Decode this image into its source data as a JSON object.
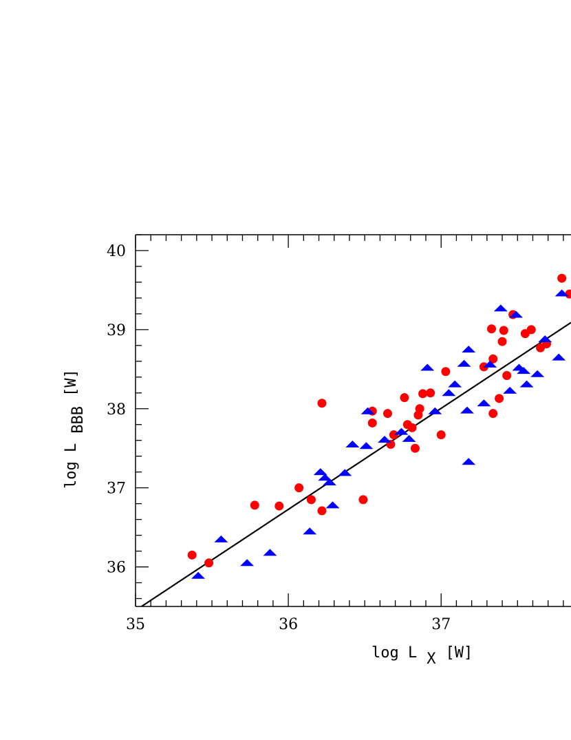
{
  "chart_data": {
    "type": "scatter",
    "title": "",
    "xlabel": {
      "main": "log L",
      "sub": "X",
      "unit": "[W]"
    },
    "ylabel": {
      "main": "log L",
      "sub": "BBB",
      "unit": "[W]"
    },
    "xlim": [
      35,
      37.85
    ],
    "ylim": [
      35.5,
      40.2
    ],
    "x_ticks": [
      35,
      36,
      37
    ],
    "y_ticks": [
      36,
      37,
      38,
      39,
      40
    ],
    "grid": false,
    "legend": "none",
    "series": [
      {
        "marker": "circle",
        "color": "#ff0000",
        "points": [
          [
            35.37,
            36.15
          ],
          [
            35.48,
            36.05
          ],
          [
            35.78,
            36.78
          ],
          [
            35.94,
            36.77
          ],
          [
            36.07,
            37.0
          ],
          [
            36.15,
            36.85
          ],
          [
            36.22,
            36.71
          ],
          [
            36.22,
            38.07
          ],
          [
            36.49,
            36.85
          ],
          [
            36.55,
            37.97
          ],
          [
            36.55,
            37.82
          ],
          [
            36.65,
            37.94
          ],
          [
            36.67,
            37.55
          ],
          [
            36.69,
            37.67
          ],
          [
            36.76,
            38.14
          ],
          [
            36.78,
            37.8
          ],
          [
            36.81,
            37.76
          ],
          [
            36.83,
            37.5
          ],
          [
            36.85,
            37.92
          ],
          [
            36.86,
            38.0
          ],
          [
            36.88,
            38.19
          ],
          [
            36.93,
            38.2
          ],
          [
            37.0,
            37.67
          ],
          [
            37.03,
            38.47
          ],
          [
            37.28,
            38.53
          ],
          [
            37.33,
            39.01
          ],
          [
            37.34,
            38.63
          ],
          [
            37.34,
            37.94
          ],
          [
            37.38,
            38.13
          ],
          [
            37.4,
            38.85
          ],
          [
            37.41,
            38.99
          ],
          [
            37.43,
            38.42
          ],
          [
            37.47,
            39.19
          ],
          [
            37.55,
            38.95
          ],
          [
            37.59,
            39.0
          ],
          [
            37.65,
            38.77
          ],
          [
            37.69,
            38.82
          ],
          [
            37.79,
            39.65
          ],
          [
            37.84,
            39.45
          ]
        ]
      },
      {
        "marker": "triangle",
        "color": "#0000ff",
        "points": [
          [
            35.41,
            35.89
          ],
          [
            35.56,
            36.35
          ],
          [
            35.73,
            36.05
          ],
          [
            35.88,
            36.18
          ],
          [
            36.14,
            36.45
          ],
          [
            36.21,
            37.2
          ],
          [
            36.24,
            37.13
          ],
          [
            36.27,
            37.07
          ],
          [
            36.29,
            36.78
          ],
          [
            36.37,
            37.19
          ],
          [
            36.42,
            37.55
          ],
          [
            36.51,
            37.53
          ],
          [
            36.52,
            37.97
          ],
          [
            36.63,
            37.61
          ],
          [
            36.74,
            37.71
          ],
          [
            36.79,
            37.62
          ],
          [
            36.91,
            38.52
          ],
          [
            36.96,
            37.97
          ],
          [
            37.05,
            38.2
          ],
          [
            37.09,
            38.31
          ],
          [
            37.15,
            38.57
          ],
          [
            37.17,
            37.98
          ],
          [
            37.18,
            38.75
          ],
          [
            37.18,
            37.33
          ],
          [
            37.28,
            38.07
          ],
          [
            37.32,
            38.56
          ],
          [
            37.39,
            39.27
          ],
          [
            37.45,
            38.23
          ],
          [
            37.49,
            39.19
          ],
          [
            37.51,
            38.52
          ],
          [
            37.54,
            38.48
          ],
          [
            37.56,
            38.31
          ],
          [
            37.63,
            38.44
          ],
          [
            37.68,
            38.88
          ],
          [
            37.77,
            38.65
          ],
          [
            37.79,
            39.46
          ]
        ]
      }
    ],
    "fit_line": {
      "color": "#000000",
      "x": [
        35.0,
        37.85
      ],
      "y": [
        35.45,
        39.09
      ]
    }
  }
}
